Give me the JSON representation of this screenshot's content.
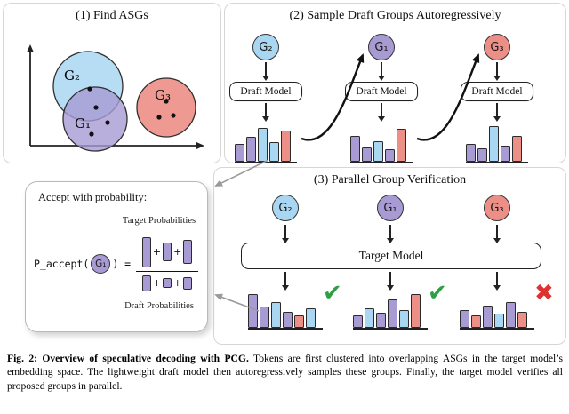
{
  "panel1": {
    "title": "(1) Find ASGs",
    "groups": [
      {
        "label": "G₂"
      },
      {
        "label": "G₁"
      },
      {
        "label": "G₃"
      }
    ]
  },
  "panel2": {
    "title": "(2) Sample Draft Groups Autoregressively",
    "columns": [
      {
        "group": "G₂",
        "model": "Draft Model"
      },
      {
        "group": "G₁",
        "model": "Draft Model"
      },
      {
        "group": "G₃",
        "model": "Draft Model"
      }
    ]
  },
  "panel3": {
    "title": "(3) Parallel Group Verification",
    "model": "Target Model",
    "columns": [
      {
        "group": "G₂",
        "result": "accept",
        "mark": "✔"
      },
      {
        "group": "G₁",
        "result": "accept",
        "mark": "✔"
      },
      {
        "group": "G₃",
        "result": "reject",
        "mark": "✖"
      }
    ]
  },
  "accept_box": {
    "title": "Accept with probability:",
    "target_label": "Target Probabilities",
    "draft_label": "Draft Probabilities",
    "formula_prefix": "P_accept(",
    "formula_group": "G₁",
    "formula_suffix": ") =",
    "plus": "+"
  },
  "caption": {
    "label": "Fig. 2: Overview of speculative decoding with PCG.",
    "body": " Tokens are first clustered into overlapping ASGs in the target model’s embedding space. The lightweight draft model then autoregressively samples these groups. Finally, the target model verifies all proposed groups in parallel."
  },
  "colors": {
    "blue": "#a9d7f2",
    "purple": "#a89bd4",
    "red": "#ec8f86",
    "accept_green": "#2f9e44",
    "reject_red": "#e03131",
    "bar_fill": {
      "P": "#a89bd4",
      "B": "#a9d7f2",
      "R": "#ec8f86"
    }
  },
  "charts": {
    "p2c1": {
      "bars": [
        {
          "h": 0.5,
          "c": "P"
        },
        {
          "h": 0.7,
          "c": "P"
        },
        {
          "h": 0.95,
          "c": "B"
        },
        {
          "h": 0.55,
          "c": "B"
        },
        {
          "h": 0.88,
          "c": "R"
        }
      ]
    },
    "p2c2": {
      "bars": [
        {
          "h": 0.72,
          "c": "P"
        },
        {
          "h": 0.4,
          "c": "P"
        },
        {
          "h": 0.58,
          "c": "B"
        },
        {
          "h": 0.35,
          "c": "P"
        },
        {
          "h": 0.92,
          "c": "R"
        }
      ]
    },
    "p2c3": {
      "bars": [
        {
          "h": 0.5,
          "c": "P"
        },
        {
          "h": 0.38,
          "c": "P"
        },
        {
          "h": 1.0,
          "c": "B"
        },
        {
          "h": 0.45,
          "c": "P"
        },
        {
          "h": 0.72,
          "c": "R"
        }
      ]
    },
    "p3c1": {
      "bars": [
        {
          "h": 0.95,
          "c": "P"
        },
        {
          "h": 0.6,
          "c": "P"
        },
        {
          "h": 0.72,
          "c": "B"
        },
        {
          "h": 0.45,
          "c": "P"
        },
        {
          "h": 0.35,
          "c": "R"
        },
        {
          "h": 0.55,
          "c": "B"
        }
      ]
    },
    "p3c2": {
      "bars": [
        {
          "h": 0.35,
          "c": "P"
        },
        {
          "h": 0.55,
          "c": "B"
        },
        {
          "h": 0.42,
          "c": "P"
        },
        {
          "h": 0.8,
          "c": "P"
        },
        {
          "h": 0.5,
          "c": "B"
        },
        {
          "h": 0.95,
          "c": "R"
        }
      ]
    },
    "p3c3": {
      "bars": [
        {
          "h": 0.5,
          "c": "P"
        },
        {
          "h": 0.35,
          "c": "R"
        },
        {
          "h": 0.62,
          "c": "P"
        },
        {
          "h": 0.4,
          "c": "B"
        },
        {
          "h": 0.72,
          "c": "P"
        },
        {
          "h": 0.45,
          "c": "R"
        }
      ]
    },
    "accept_num": {
      "bars": [
        {
          "h": 1.0,
          "c": "P"
        },
        {
          "h": 0.62,
          "c": "P"
        },
        {
          "h": 0.78,
          "c": "P"
        }
      ]
    },
    "accept_den": {
      "bars": [
        {
          "h": 0.9,
          "c": "P"
        },
        {
          "h": 0.55,
          "c": "P"
        },
        {
          "h": 0.7,
          "c": "P"
        }
      ]
    }
  }
}
